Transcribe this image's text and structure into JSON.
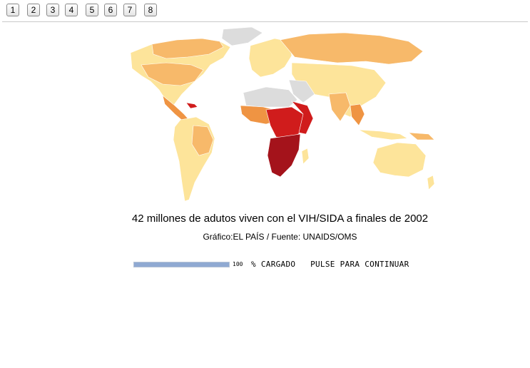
{
  "pager": {
    "pages": [
      "1",
      "2",
      "3",
      "4",
      "5",
      "6",
      "7",
      "8"
    ]
  },
  "map": {
    "colors": {
      "very_low": "#fde49a",
      "low": "#f7b96a",
      "medium": "#ef9443",
      "high": "#d01c1c",
      "very_high": "#a4131b",
      "no_data": "#dcdcdc"
    }
  },
  "caption": {
    "title": "42 millones de adutos viven con el VIH/SIDA a finales de 2002",
    "source": "Gráfico:EL PAÍS / Fuente: UNAIDS/OMS"
  },
  "loader": {
    "progress_percent": 100,
    "percent_label": "100",
    "loaded_text": "% CARGADO   PULSE PARA CONTINUAR"
  }
}
